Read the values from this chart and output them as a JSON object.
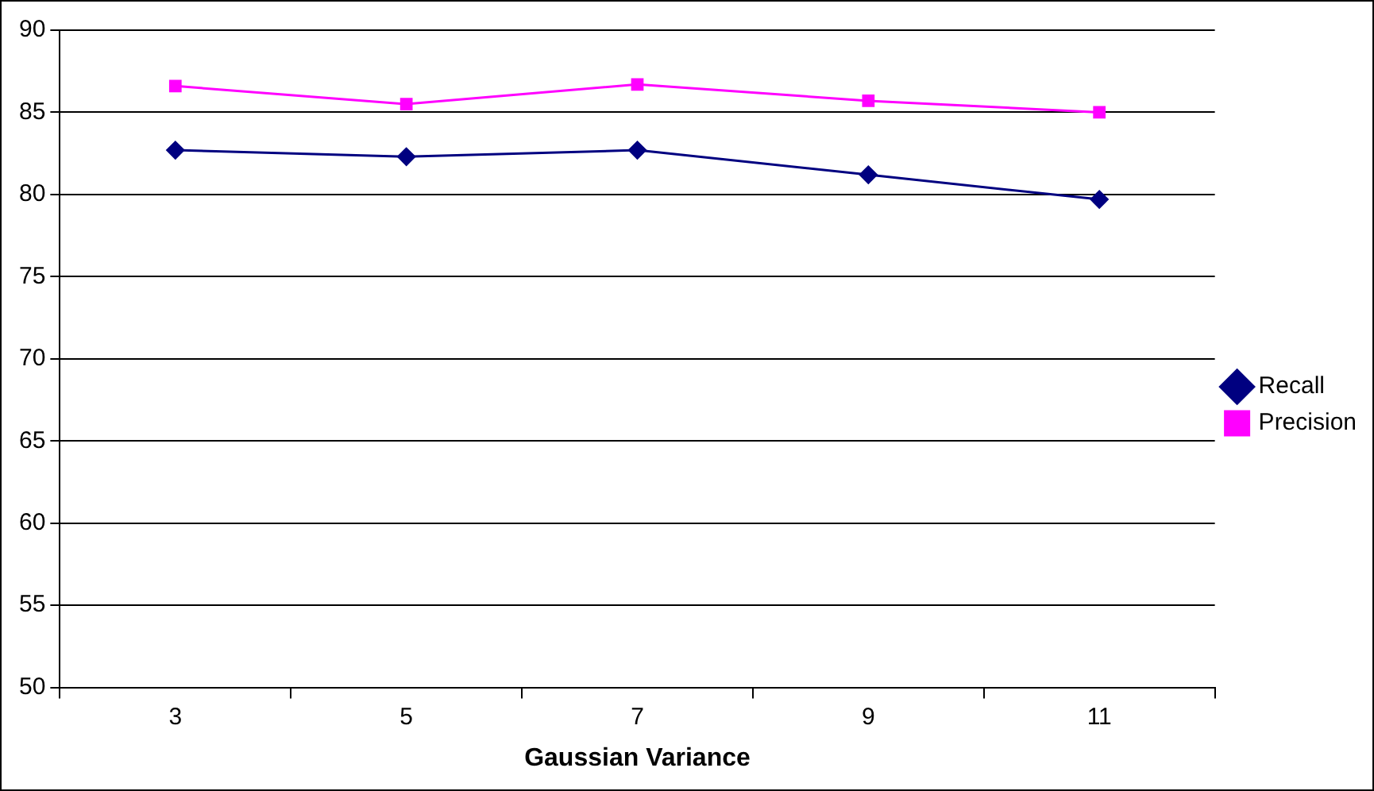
{
  "chart_data": {
    "type": "line",
    "xlabel": "Gaussian Variance",
    "categories": [
      "3",
      "5",
      "7",
      "9",
      "11"
    ],
    "series": [
      {
        "name": "Recall",
        "color": "#000080",
        "marker": "diamond",
        "values": [
          82.7,
          82.3,
          82.7,
          81.2,
          79.7
        ]
      },
      {
        "name": "Precision",
        "color": "#ff00ff",
        "marker": "square",
        "values": [
          86.6,
          85.5,
          86.7,
          85.7,
          85.0
        ]
      }
    ],
    "ylim": [
      50,
      90
    ],
    "yticks": [
      50,
      55,
      60,
      65,
      70,
      75,
      80,
      85,
      90
    ],
    "grid": "y",
    "legend": "right"
  }
}
